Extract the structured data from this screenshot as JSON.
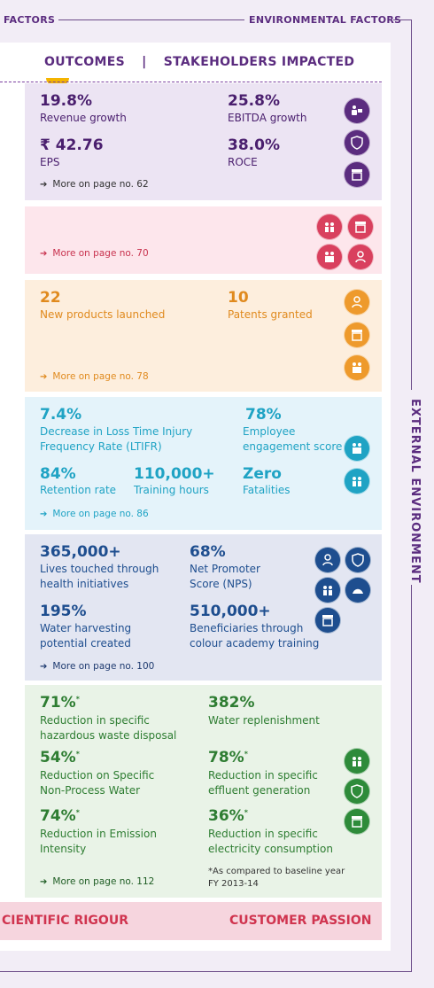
{
  "header": {
    "left_label": "FACTORS",
    "right_label": "ENVIRONMENTAL FACTORS",
    "outcomes_title": "OUTCOMES",
    "separator": "|",
    "stakeholders_title": "STAKEHOLDERS IMPACTED"
  },
  "side_label": "EXTERNAL ENVIRONMENT",
  "colors": {
    "purple": "#5b2c7f",
    "financial_bg": "#ece4f3",
    "red_bg": "#fde6ec",
    "orange_bg": "#fdeedd",
    "teal_bg": "#e4f3fa",
    "blue_bg": "#e3e6f2",
    "green_bg": "#e9f3e7",
    "footer_bg": "#f6d5de"
  },
  "financial": {
    "m1_value": "19.8%",
    "m1_label": "Revenue growth",
    "m2_value": "25.8%",
    "m2_label": "EBITDA growth",
    "m3_value": "₹ 42.76",
    "m3_label": "EPS",
    "m4_value": "38.0%",
    "m4_label": "ROCE",
    "more": "More on page no. 62"
  },
  "red": {
    "more": "More on page no. 70"
  },
  "orange": {
    "m1_value": "22",
    "m1_label": "New products launched",
    "m2_value": "10",
    "m2_label": "Patents granted",
    "more": "More on page no. 78"
  },
  "teal": {
    "m1_value": "7.4%",
    "m1_label_1": "Decrease in Loss Time Injury",
    "m1_label_2": "Frequency Rate (LTIFR)",
    "m2_value": "78%",
    "m2_label_1": "Employee",
    "m2_label_2": "engagement score",
    "m3_value": "84%",
    "m3_label": "Retention rate",
    "m4_value": "110,000+",
    "m4_label": "Training hours",
    "m5_value": "Zero",
    "m5_label": "Fatalities",
    "more": "More on page no. 86"
  },
  "blue": {
    "m1_value": "365,000+",
    "m1_label_1": "Lives touched through",
    "m1_label_2": "health initiatives",
    "m2_value": "68%",
    "m2_label_1": "Net Promoter",
    "m2_label_2": "Score (NPS)",
    "m3_value": "195%",
    "m3_label_1": "Water harvesting",
    "m3_label_2": "potential created",
    "m4_value": "510,000+",
    "m4_label_1": "Beneficiaries through",
    "m4_label_2": "colour academy training",
    "more": "More on page no. 100"
  },
  "green": {
    "m1_value": "71%",
    "m1_label_1": "Reduction in specific",
    "m1_label_2": "hazardous waste disposal",
    "m2_value": "382%",
    "m2_label": "Water replenishment",
    "m3_value": "54%",
    "m3_label_1": "Reduction on Specific",
    "m3_label_2": "Non-Process Water",
    "m4_value": "78%",
    "m4_label_1": "Reduction in specific",
    "m4_label_2": "effluent generation",
    "m5_value": "74%",
    "m5_label_1": "Reduction in Emission",
    "m5_label_2": "Intensity",
    "m6_value": "36%",
    "m6_label_1": "Reduction in specific",
    "m6_label_2": "electricity consumption",
    "asterisk": "*",
    "footnote_1": "*As compared to baseline year",
    "footnote_2": "FY 2013-14",
    "more": "More on page no. 112"
  },
  "footer": {
    "left": "CIENTIFIC RIGOUR",
    "right": "CUSTOMER PASSION"
  },
  "icons": [
    "investor-icon",
    "shield-icon",
    "store-icon",
    "community-icon",
    "employee-icon",
    "customer-icon",
    "environment-icon"
  ]
}
